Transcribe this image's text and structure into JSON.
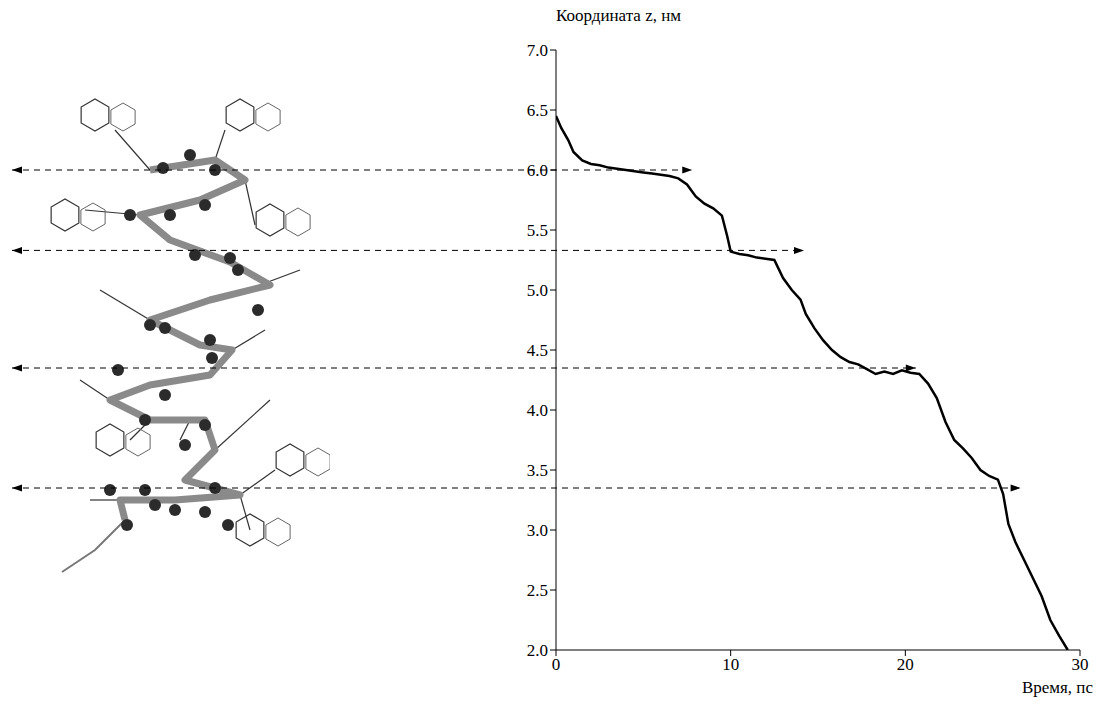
{
  "chart_data": {
    "type": "line",
    "x_label": "Время, пс",
    "y_label": "Координата z, нм",
    "color": "#000000",
    "xlim": [
      0,
      30
    ],
    "xticks": [
      0,
      10,
      20,
      30
    ],
    "ylim": [
      2,
      7
    ],
    "yticks": [
      {
        "value": 2,
        "label": "2.0"
      },
      {
        "value": 2.5,
        "label": "2.5"
      },
      {
        "value": 3,
        "label": "3.0"
      },
      {
        "value": 3.5,
        "label": "3.5"
      },
      {
        "value": 4,
        "label": "4.0"
      },
      {
        "value": 4.5,
        "label": "4.5"
      },
      {
        "value": 5,
        "label": "5.0"
      },
      {
        "value": 5.5,
        "label": "5.5"
      },
      {
        "value": 6,
        "label": "6.0"
      },
      {
        "value": 6.5,
        "label": "6.5"
      },
      {
        "value": 7,
        "label": "7.0"
      }
    ],
    "grid": false,
    "line_style": "dashed",
    "reference_lines": [
      {
        "y": 6.0,
        "x_end": 7.8
      },
      {
        "y": 5.33,
        "x_end": 14.2
      },
      {
        "y": 4.35,
        "x_end": 20.6
      },
      {
        "y": 3.35,
        "x_end": 26.6
      }
    ],
    "x": [
      0,
      0.3,
      0.7,
      1.0,
      1.5,
      2.0,
      2.5,
      3.0,
      3.5,
      4.0,
      4.5,
      5.0,
      5.5,
      6.0,
      6.5,
      7.0,
      7.5,
      8.0,
      8.5,
      9.0,
      9.5,
      9.8,
      10.0,
      10.5,
      11.0,
      11.5,
      12.0,
      12.5,
      13.0,
      13.5,
      14.0,
      14.3,
      14.8,
      15.3,
      15.8,
      16.3,
      16.8,
      17.3,
      17.8,
      18.3,
      18.8,
      19.3,
      19.8,
      20.3,
      20.8,
      21.3,
      21.8,
      22.3,
      22.8,
      23.3,
      23.8,
      24.3,
      24.8,
      25.3,
      25.6,
      25.9,
      26.3,
      26.8,
      27.3,
      27.8,
      28.3,
      28.8,
      29.3
    ],
    "values": [
      6.45,
      6.35,
      6.25,
      6.15,
      6.08,
      6.05,
      6.04,
      6.02,
      6.01,
      6.0,
      5.99,
      5.98,
      5.97,
      5.96,
      5.95,
      5.93,
      5.88,
      5.78,
      5.72,
      5.68,
      5.62,
      5.45,
      5.32,
      5.3,
      5.29,
      5.27,
      5.26,
      5.25,
      5.1,
      5.0,
      4.92,
      4.8,
      4.68,
      4.58,
      4.5,
      4.44,
      4.4,
      4.38,
      4.34,
      4.3,
      4.32,
      4.3,
      4.33,
      4.31,
      4.3,
      4.22,
      4.1,
      3.9,
      3.75,
      3.68,
      3.6,
      3.5,
      3.45,
      3.42,
      3.3,
      3.05,
      2.9,
      2.75,
      2.6,
      2.45,
      2.25,
      2.12,
      2.0
    ]
  }
}
